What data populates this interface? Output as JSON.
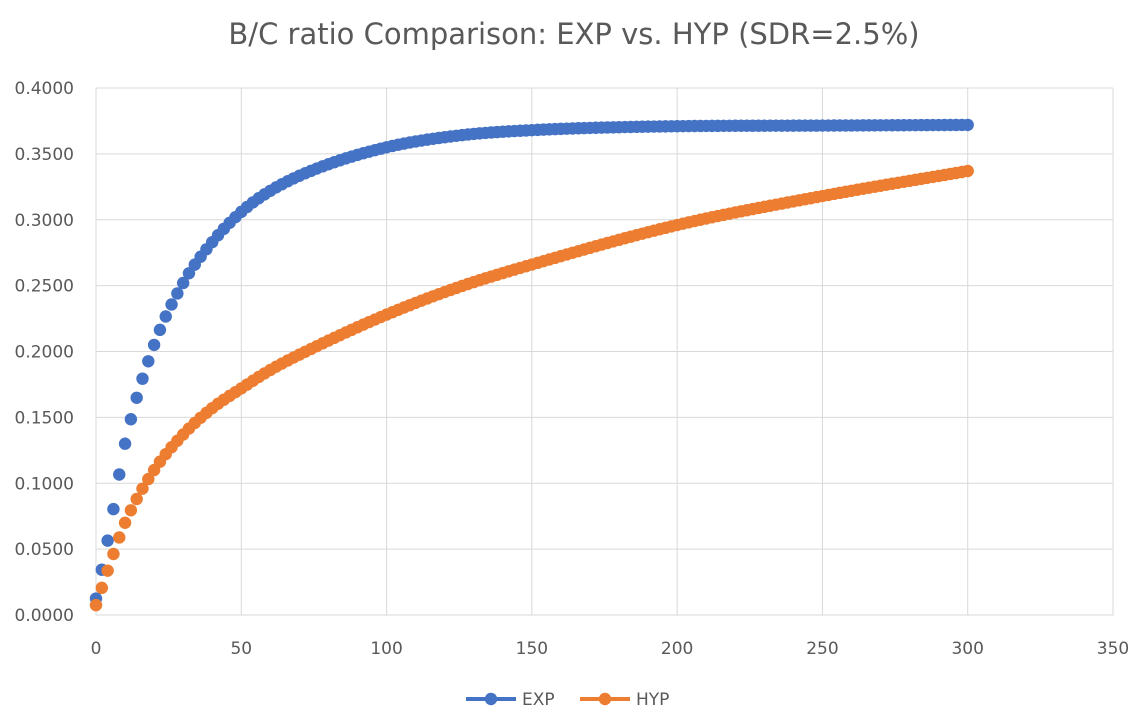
{
  "chart_data": {
    "type": "scatter",
    "title": "B/C ratio Comparison: EXP vs. HYP  (SDR=2.5%)",
    "xlabel": "",
    "ylabel": "",
    "xlim": [
      0,
      350
    ],
    "ylim": [
      0,
      0.4
    ],
    "x_ticks": [
      0,
      50,
      100,
      150,
      200,
      250,
      300,
      350
    ],
    "y_ticks": [
      0,
      0.05,
      0.1,
      0.15,
      0.2,
      0.25,
      0.3,
      0.35,
      0.4
    ],
    "y_tick_labels": [
      "0.0000",
      "0.0500",
      "0.1000",
      "0.1500",
      "0.2000",
      "0.2500",
      "0.3000",
      "0.3500",
      "0.4000"
    ],
    "x_tick_labels": [
      "0",
      "50",
      "100",
      "150",
      "200",
      "250",
      "300",
      "350"
    ],
    "grid": true,
    "legend_position": "bottom",
    "series": [
      {
        "name": "EXP",
        "color": "#4472c4",
        "x": [
          0,
          5,
          10,
          20,
          30,
          40,
          50,
          60,
          75,
          100,
          125,
          150,
          200,
          250,
          300
        ],
        "y": [
          0.0125,
          0.068,
          0.13,
          0.205,
          0.252,
          0.283,
          0.306,
          0.322,
          0.338,
          0.355,
          0.364,
          0.368,
          0.371,
          0.3715,
          0.372
        ]
      },
      {
        "name": "HYP",
        "color": "#ed7d31",
        "x": [
          0,
          5,
          10,
          20,
          30,
          40,
          50,
          60,
          75,
          100,
          125,
          150,
          200,
          250,
          300
        ],
        "y": [
          0.0075,
          0.04,
          0.07,
          0.11,
          0.137,
          0.157,
          0.172,
          0.186,
          0.203,
          0.228,
          0.249,
          0.266,
          0.296,
          0.318,
          0.337
        ]
      }
    ]
  }
}
